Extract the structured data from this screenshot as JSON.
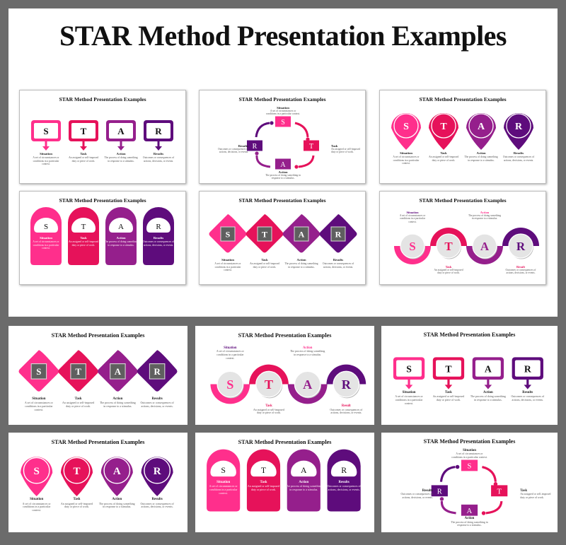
{
  "page": {
    "title": "STAR Method Presentation Examples",
    "background_color": "#6b6b6b"
  },
  "colors": {
    "S": "#ff2f8c",
    "T": "#e6125a",
    "A": "#951f8c",
    "R": "#5e0c7c",
    "box_gray": "#5f5f5f",
    "circle_gray": "#e4e4e4"
  },
  "slide_title": "STAR Method Presentation Examples",
  "steps": [
    {
      "letter": "S",
      "label": "Situation",
      "desc": "A set of circumstances or conditions in a particular context."
    },
    {
      "letter": "T",
      "label": "Task",
      "desc": "An assigned or self-imposed duty or piece of work."
    },
    {
      "letter": "A",
      "label": "Action",
      "desc": "The process of doing something in response to a stimulus."
    },
    {
      "letter": "R",
      "label": "Results",
      "desc": "Outcomes or consequences of actions, decisions, or events."
    }
  ],
  "wave_labels": {
    "situation": "Situation",
    "task": "Task",
    "action": "Action",
    "result": "Result",
    "situation_desc": "A set of circumstances or conditions in a particular context.",
    "task_desc": "An assigned or self-imposed duty or piece of work.",
    "action_desc": "The process of doing something in response to a stimulus.",
    "result_desc": "Outcomes or consequences of actions, decisions, or events."
  },
  "slides": [
    {
      "id": "callout-boxes",
      "section": "top",
      "row": 1,
      "col": 1
    },
    {
      "id": "cycle",
      "section": "top",
      "row": 1,
      "col": 2
    },
    {
      "id": "pins",
      "section": "top",
      "row": 1,
      "col": 3
    },
    {
      "id": "tags",
      "section": "top",
      "row": 2,
      "col": 1
    },
    {
      "id": "diamonds",
      "section": "top",
      "row": 2,
      "col": 2
    },
    {
      "id": "wave",
      "section": "top",
      "row": 2,
      "col": 3
    },
    {
      "id": "diamonds",
      "section": "bottom",
      "row": 1,
      "col": 1
    },
    {
      "id": "wave",
      "section": "bottom",
      "row": 1,
      "col": 2
    },
    {
      "id": "callout-boxes",
      "section": "bottom",
      "row": 1,
      "col": 3
    },
    {
      "id": "pins",
      "section": "bottom",
      "row": 2,
      "col": 1
    },
    {
      "id": "tags",
      "section": "bottom",
      "row": 2,
      "col": 2
    },
    {
      "id": "cycle",
      "section": "bottom",
      "row": 2,
      "col": 3
    }
  ]
}
